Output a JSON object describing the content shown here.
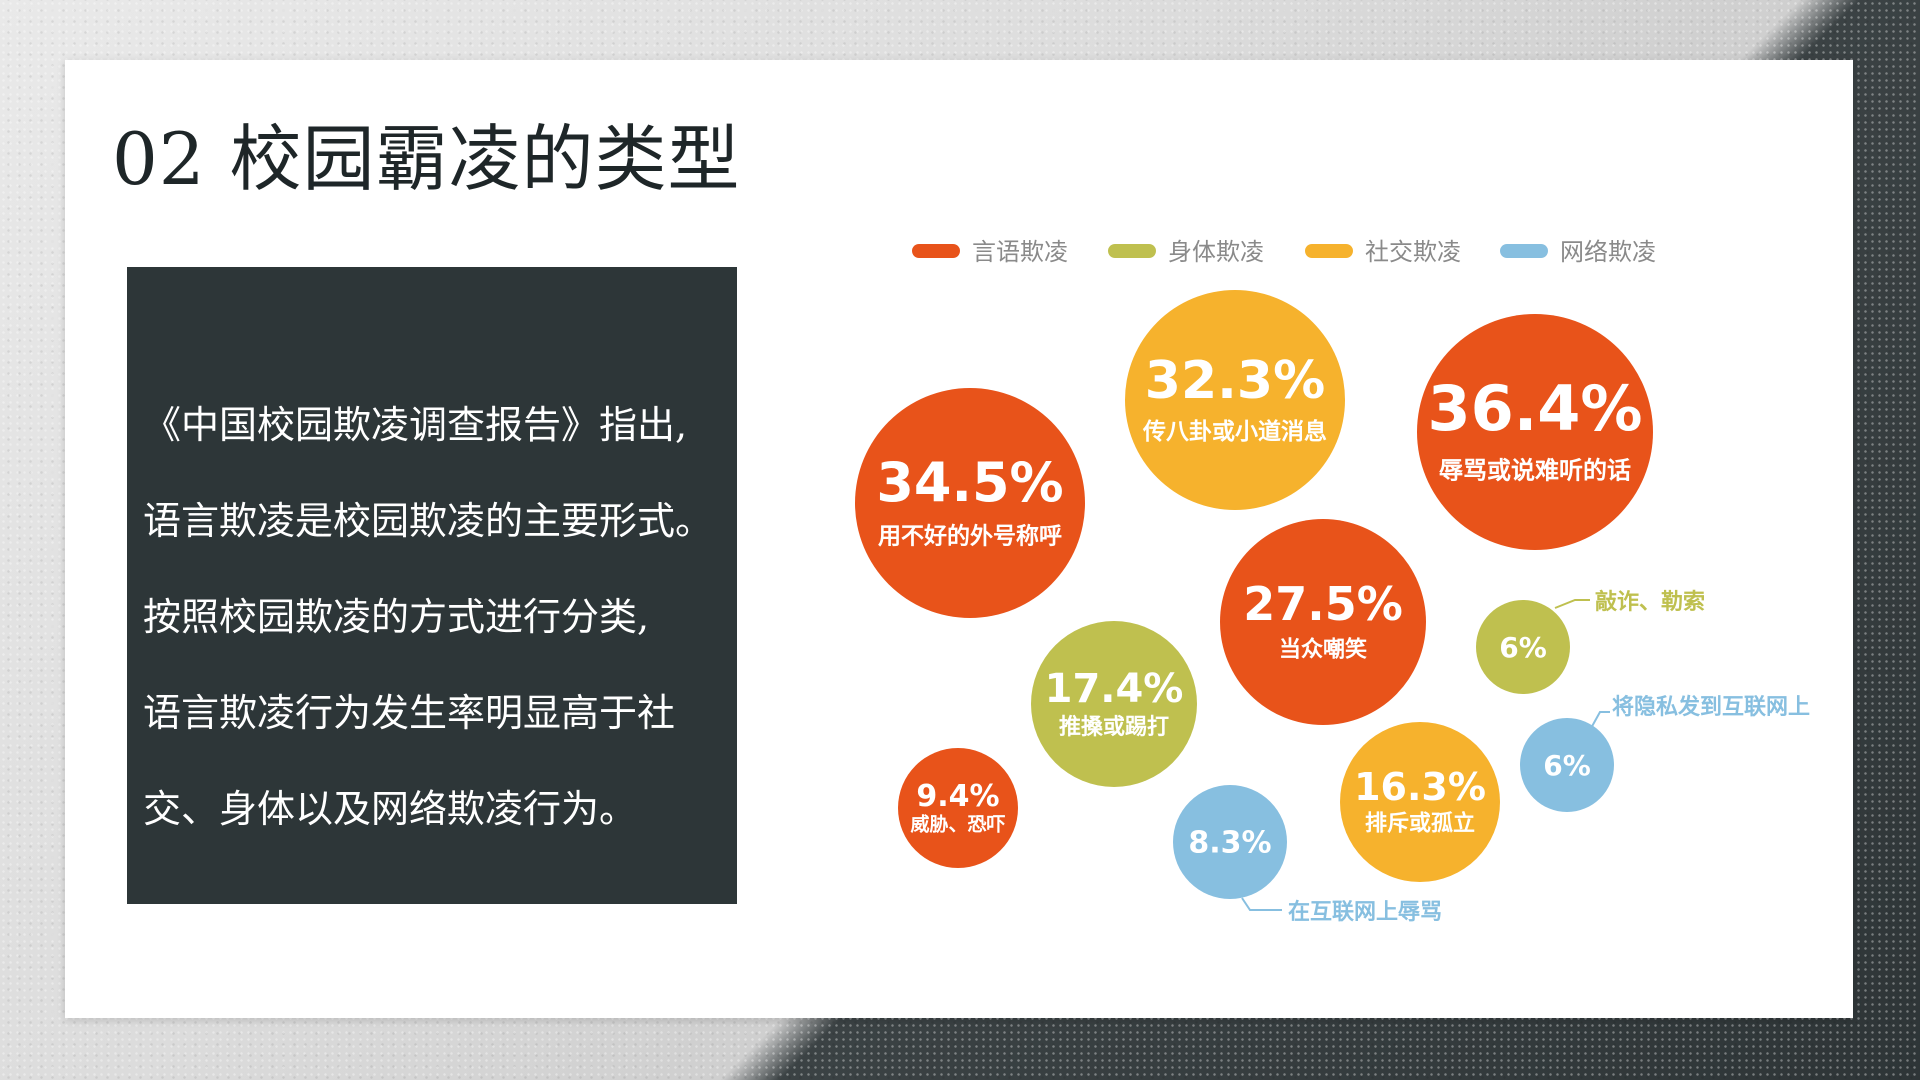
{
  "slide": {
    "title": "02 校园霸凌的类型",
    "text_lines": [
      "《中国校园欺凌调查报告》指出,",
      "语言欺凌是校园欺凌的主要形式。",
      "按照校园欺凌的方式进行分类,",
      "语言欺凌行为发生率明显高于社",
      "交、身体以及网络欺凌行为。"
    ]
  },
  "chart_data": {
    "type": "bubble",
    "title": "",
    "legend": [
      {
        "name": "言语欺凌",
        "color": "#e8531a"
      },
      {
        "name": "身体欺凌",
        "color": "#bfc04f"
      },
      {
        "name": "社交欺凌",
        "color": "#f6b22d"
      },
      {
        "name": "网络欺凌",
        "color": "#87bfe0"
      }
    ],
    "bubbles": [
      {
        "value": "32.3%",
        "label": "传八卦或小道消息",
        "category": "社交欺凌"
      },
      {
        "value": "34.5%",
        "label": "用不好的外号称呼",
        "category": "言语欺凌"
      },
      {
        "value": "36.4%",
        "label": "辱骂或说难听的话",
        "category": "言语欺凌"
      },
      {
        "value": "27.5%",
        "label": "当众嘲笑",
        "category": "言语欺凌"
      },
      {
        "value": "17.4%",
        "label": "推搡或踢打",
        "category": "身体欺凌"
      },
      {
        "value": "6%",
        "label": "敲诈、勒索",
        "category": "身体欺凌"
      },
      {
        "value": "6%",
        "label": "将隐私发到互联网上",
        "category": "网络欺凌"
      },
      {
        "value": "9.4%",
        "label": "威胁、恐吓",
        "category": "言语欺凌"
      },
      {
        "value": "16.3%",
        "label": "排斥或孤立",
        "category": "社交欺凌"
      },
      {
        "value": "8.3%",
        "label": "在互联网上辱骂",
        "category": "网络欺凌"
      }
    ]
  }
}
